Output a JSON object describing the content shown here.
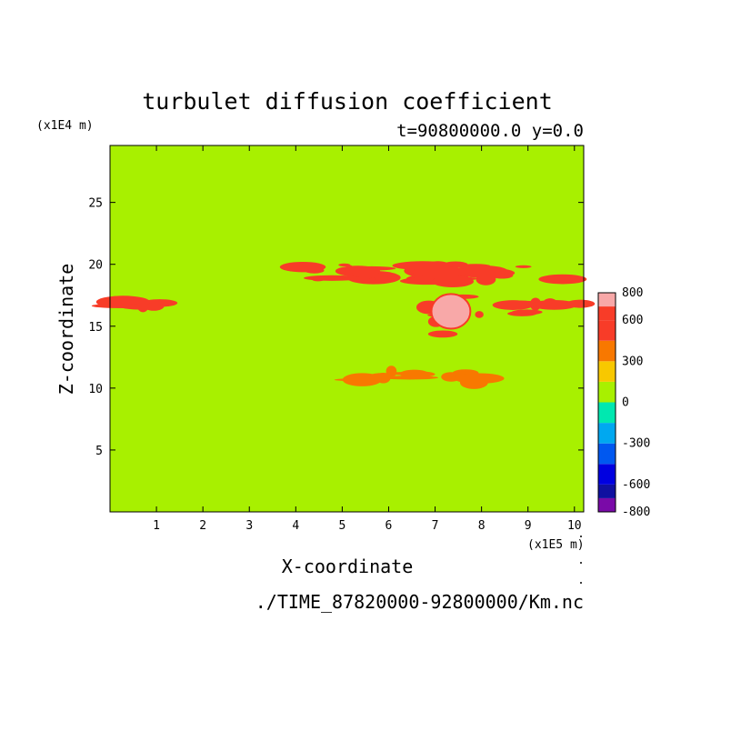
{
  "chart_data": {
    "type": "heatmap",
    "title": "turbulet diffusion coefficient",
    "subtitle": "t=90800000.0 y=0.0",
    "xlabel": "X-coordinate",
    "ylabel": "Z-coordinate",
    "x_unit": "(x1E5 m)",
    "y_unit": "(x1E4 m)",
    "xlim": [
      0,
      10.2
    ],
    "ylim": [
      0,
      29.6
    ],
    "x_ticks": [
      1,
      2,
      3,
      4,
      5,
      6,
      7,
      8,
      9,
      10
    ],
    "y_ticks": [
      5,
      10,
      15,
      20,
      25
    ],
    "background_value": 0,
    "colorbar": {
      "levels": [
        -800,
        -700,
        -600,
        -450,
        -300,
        -150,
        0,
        150,
        300,
        450,
        600,
        700,
        800
      ],
      "labels": [
        "800",
        "600",
        "300",
        "0",
        "-300",
        "-600",
        "-800"
      ],
      "label_values": [
        800,
        600,
        300,
        0,
        -300,
        -600,
        -800
      ],
      "colors": [
        "#7a0aa8",
        "#1010a0",
        "#0000e0",
        "#0058f0",
        "#00a8f0",
        "#00e8b0",
        "#a8f000",
        "#f8c800",
        "#f87800",
        "#f83c28",
        "#f83c28",
        "#f8a8a8"
      ]
    },
    "features": [
      {
        "name": "band-16.5",
        "x": [
          0.0,
          1.6
        ],
        "z": [
          16.2,
          17.0
        ],
        "value": 600
      },
      {
        "name": "band-16.5-right",
        "x": [
          8.6,
          10.2
        ],
        "z": [
          16.0,
          17.2
        ],
        "value": 600
      },
      {
        "name": "upper-streaks",
        "x": [
          4.0,
          10.2
        ],
        "z": [
          18.6,
          20.0
        ],
        "value": 600
      },
      {
        "name": "core-cell",
        "x": [
          6.8,
          8.0
        ],
        "z": [
          14.0,
          18.0
        ],
        "value": 800
      },
      {
        "name": "lower-streaks",
        "x": [
          5.0,
          8.2
        ],
        "z": [
          10.4,
          11.4
        ],
        "value": 450
      }
    ],
    "source_file": "./TIME_87820000-92800000/Km.nc"
  }
}
